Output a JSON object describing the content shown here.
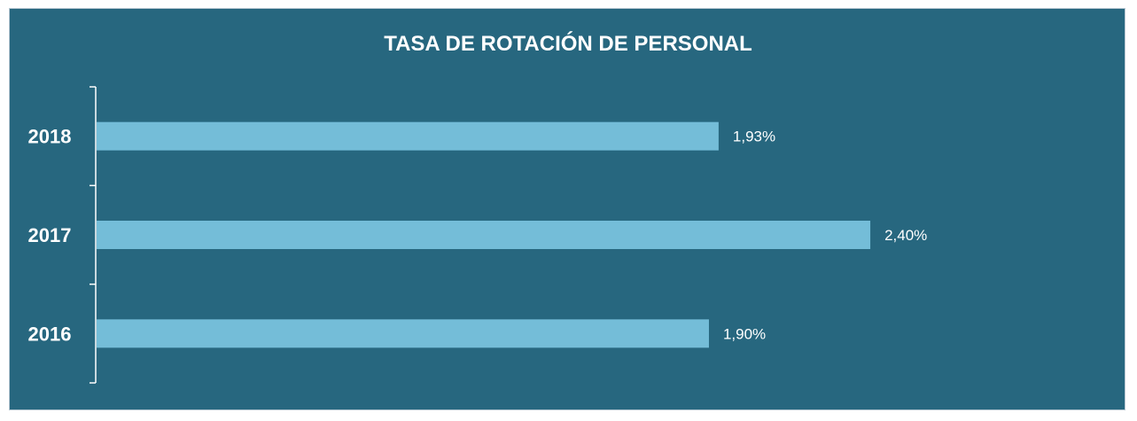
{
  "chart_data": {
    "type": "bar",
    "orientation": "horizontal",
    "title": "TASA DE ROTACIÓN DE PERSONAL",
    "categories": [
      "2018",
      "2017",
      "2016"
    ],
    "values": [
      1.93,
      2.4,
      1.9
    ],
    "value_labels": [
      "1,93%",
      "2,40%",
      "1,90%"
    ],
    "xlim": [
      0,
      3.1
    ],
    "grid": false,
    "legend": "none",
    "colors": {
      "background": "#27677f",
      "bar": "#74bdd8",
      "text": "#ffffff",
      "axis": "#ffffff"
    }
  }
}
